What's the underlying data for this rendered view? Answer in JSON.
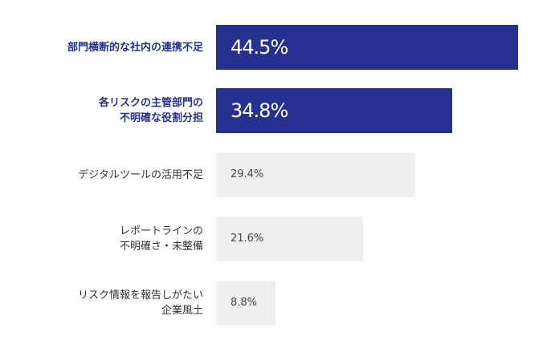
{
  "chart_data": {
    "type": "bar",
    "orientation": "horizontal",
    "categories": [
      [
        "部門横断的な社内の連携不足"
      ],
      [
        "各リスクの主管部門の",
        "不明確な役割分担"
      ],
      [
        "デジタルツールの活用不足"
      ],
      [
        "レポートラインの",
        "不明確さ・未整備"
      ],
      [
        "リスク情報を報告しがたい",
        "企業風土"
      ]
    ],
    "values": [
      44.5,
      34.8,
      29.4,
      21.6,
      8.8
    ],
    "value_labels": [
      "44.5%",
      "34.8%",
      "29.4%",
      "21.6%",
      "8.8%"
    ],
    "highlighted": [
      true,
      true,
      false,
      false,
      false
    ],
    "colors": {
      "highlight": "#26318f",
      "normal": "#efefef"
    },
    "title": "",
    "xlabel": "",
    "ylabel": "",
    "xlim": [
      0,
      44.5
    ],
    "grid": false,
    "legend": "none"
  }
}
